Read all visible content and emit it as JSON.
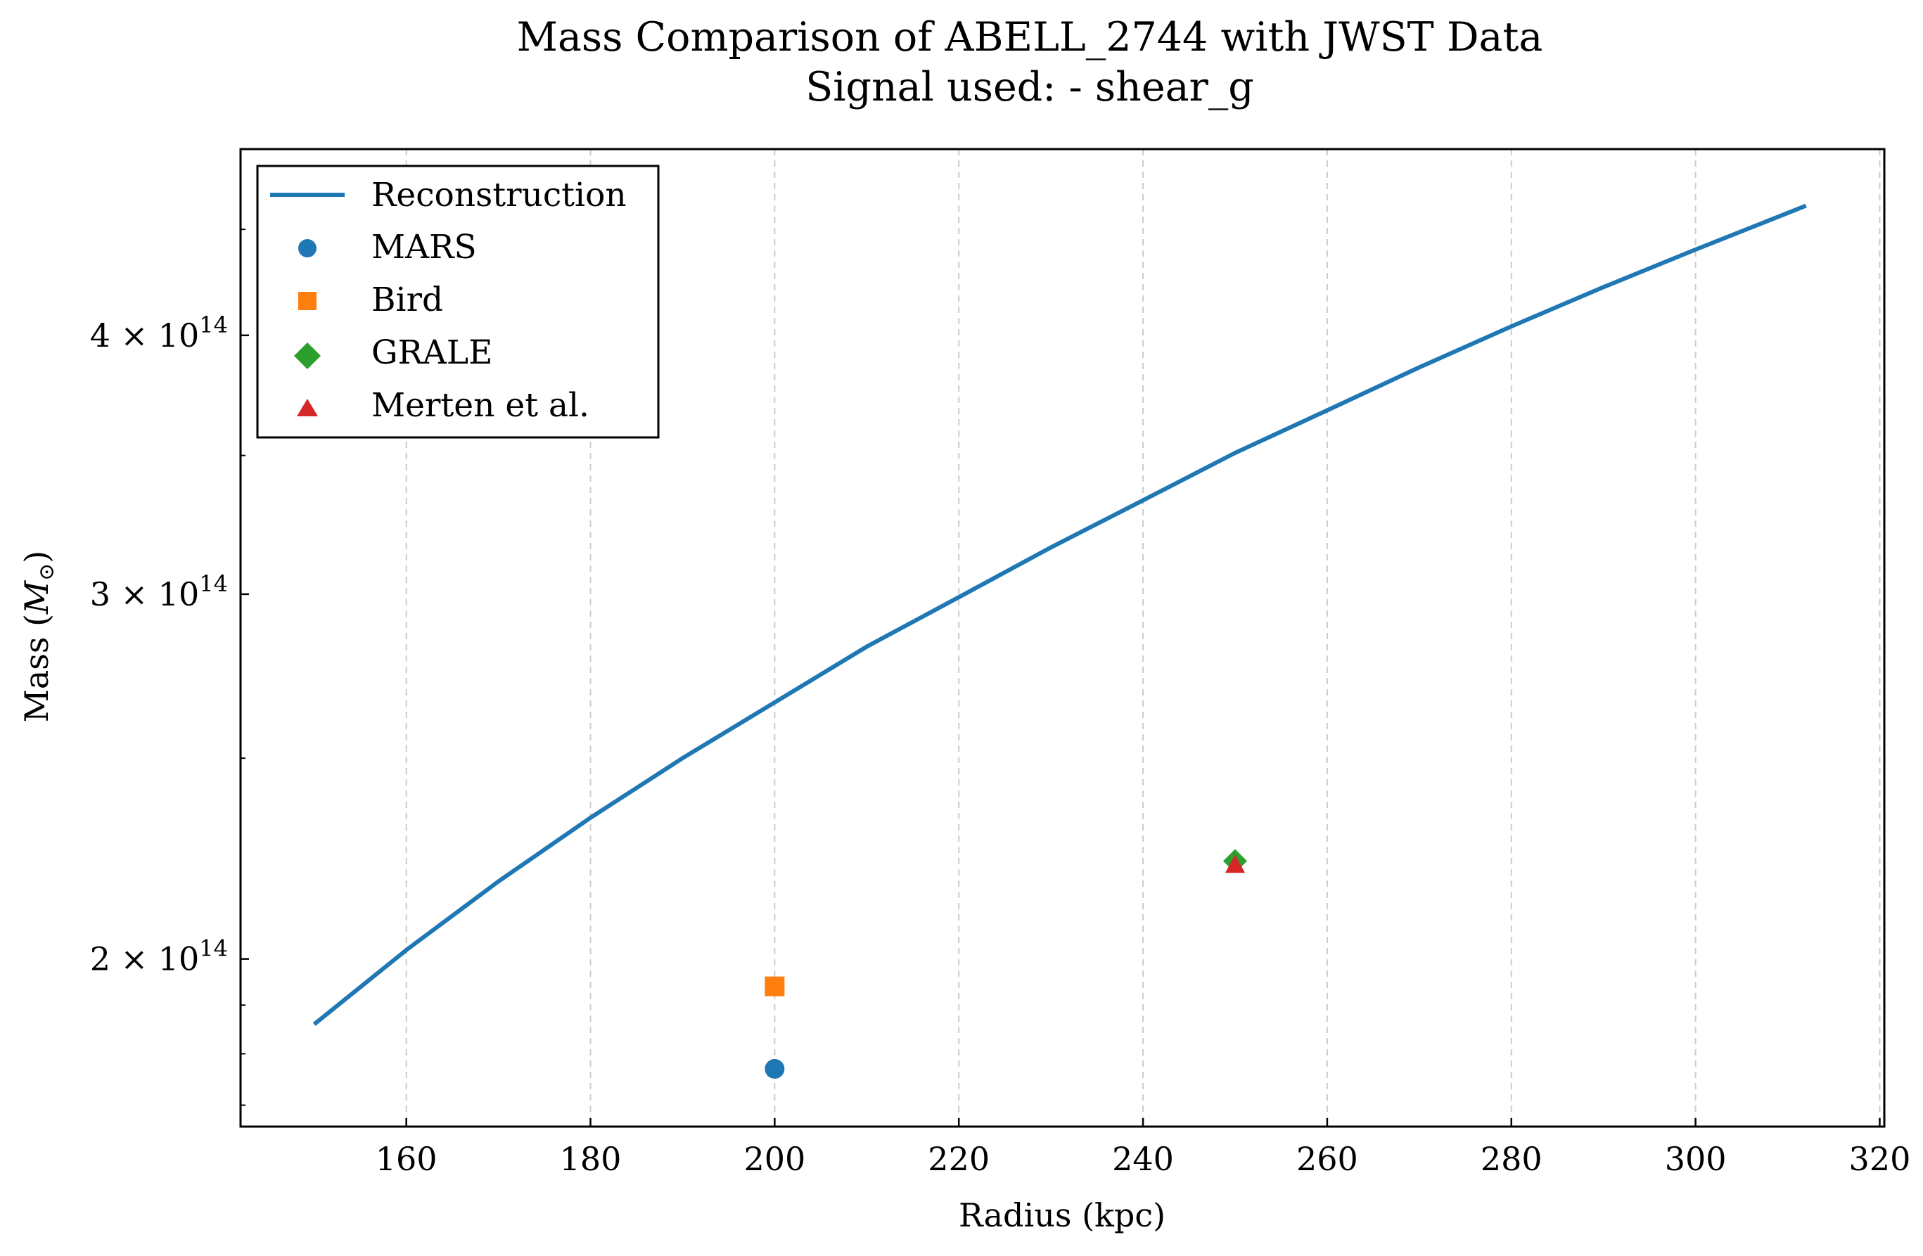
{
  "chart_data": {
    "type": "line",
    "title": "Mass Comparison of ABELL_2744 with JWST Data",
    "subtitle": "Signal used: - shear_g",
    "xlabel": "Radius (kpc)",
    "ylabel_main": "Mass (",
    "ylabel_symbol": "M",
    "ylabel_sub": "⊙",
    "ylabel_close": ")",
    "xlim": [
      142,
      320.5
    ],
    "ylim": [
      166000000000000.0,
      492000000000000.0
    ],
    "y_scale": "log",
    "grid": "x-dashed",
    "legend_position": "top-left",
    "x_ticks": [
      {
        "value": 160,
        "label": "160"
      },
      {
        "value": 180,
        "label": "180"
      },
      {
        "value": 200,
        "label": "200"
      },
      {
        "value": 220,
        "label": "220"
      },
      {
        "value": 240,
        "label": "240"
      },
      {
        "value": 260,
        "label": "260"
      },
      {
        "value": 280,
        "label": "280"
      },
      {
        "value": 300,
        "label": "300"
      },
      {
        "value": 320,
        "label": "320"
      }
    ],
    "y_ticks": [
      {
        "value": 200000000000000.0,
        "mantissa": "2",
        "times": "×",
        "base": "10",
        "exponent": "14"
      },
      {
        "value": 300000000000000.0,
        "mantissa": "3",
        "times": "×",
        "base": "10",
        "exponent": "14"
      },
      {
        "value": 400000000000000.0,
        "mantissa": "4",
        "times": "×",
        "base": "10",
        "exponent": "14"
      }
    ],
    "series": [
      {
        "name": "Reconstruction",
        "kind": "line",
        "color": "#1f77b4",
        "x": [
          150,
          160,
          170,
          180,
          190,
          200,
          210,
          220,
          230,
          240,
          250,
          260,
          270,
          280,
          290,
          300,
          312
        ],
        "y": [
          186000000000000.0,
          202000000000000.0,
          218000000000000.0,
          234000000000000.0,
          250000000000000.0,
          266000000000000.0,
          283000000000000.0,
          299000000000000.0,
          316000000000000.0,
          333000000000000.0,
          351000000000000.0,
          368000000000000.0,
          386000000000000.0,
          404000000000000.0,
          422000000000000.0,
          440000000000000.0,
          462000000000000.0
        ]
      },
      {
        "name": "MARS",
        "kind": "marker",
        "marker": "circle",
        "color": "#1f77b4",
        "x": [
          200
        ],
        "y": [
          177000000000000.0
        ]
      },
      {
        "name": "Bird",
        "kind": "marker",
        "marker": "square",
        "color": "#ff7f0e",
        "x": [
          200
        ],
        "y": [
          194000000000000.0
        ]
      },
      {
        "name": "GRALE",
        "kind": "marker",
        "marker": "diamond",
        "color": "#2ca02c",
        "x": [
          250
        ],
        "y": [
          223000000000000.0
        ]
      },
      {
        "name": "Merten et al.",
        "kind": "marker",
        "marker": "triangle",
        "color": "#d62728",
        "x": [
          250
        ],
        "y": [
          222000000000000.0
        ]
      }
    ]
  }
}
